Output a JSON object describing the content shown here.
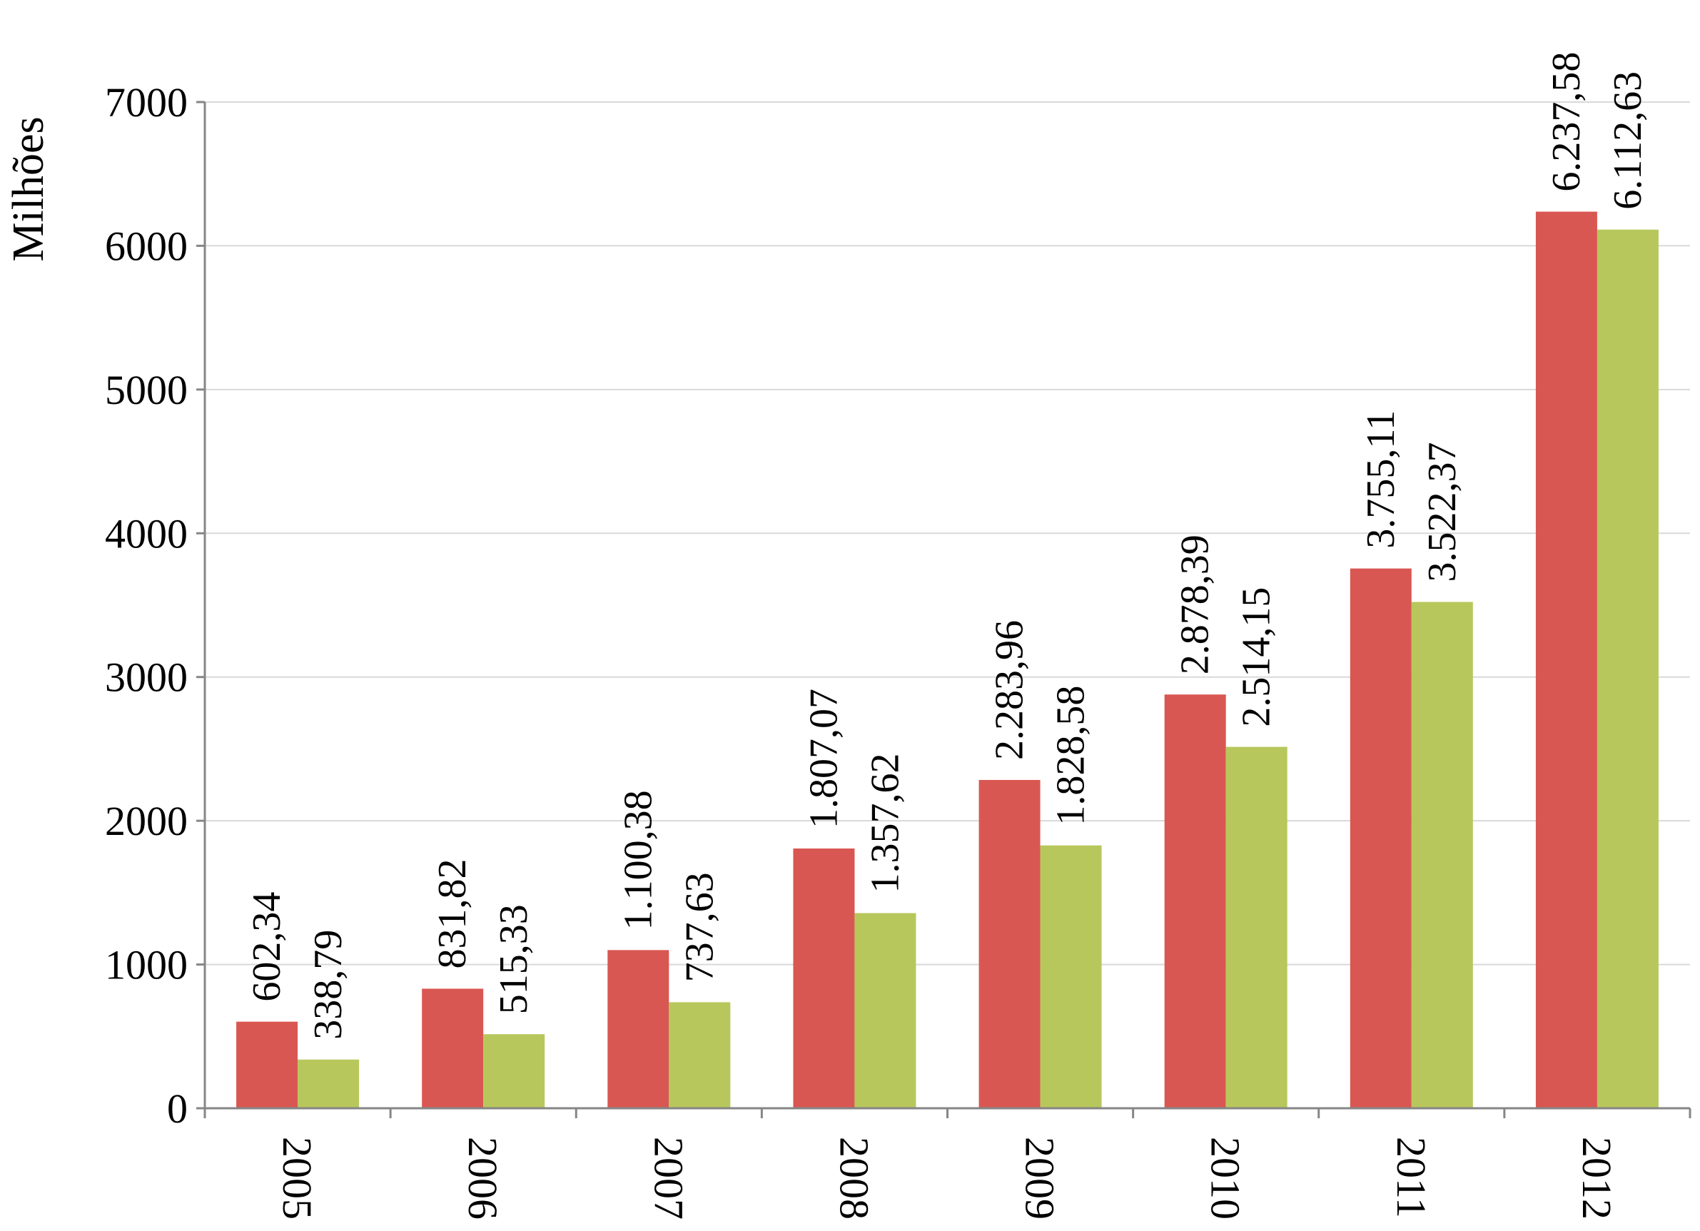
{
  "chart_data": {
    "type": "bar",
    "title": "",
    "xlabel": "",
    "ylabel": "Milhões",
    "ylim": [
      0,
      7000
    ],
    "yticks": [
      0,
      1000,
      2000,
      3000,
      4000,
      5000,
      6000,
      7000
    ],
    "grid": true,
    "legend": "none",
    "categories": [
      "2005",
      "2006",
      "2007",
      "2008",
      "2009",
      "2010",
      "2011",
      "2012"
    ],
    "series": [
      {
        "color": "#d95752",
        "values": [
          602.34,
          831.82,
          1100.38,
          1807.07,
          2283.96,
          2878.39,
          3755.11,
          6237.58
        ],
        "labels": [
          "602,34",
          "831,82",
          "1.100,38",
          "1.807,07",
          "2.283,96",
          "2.878,39",
          "3.755,11",
          "6.237,58"
        ]
      },
      {
        "color": "#b8c75c",
        "values": [
          338.79,
          515.33,
          737.63,
          1357.62,
          1828.58,
          2514.15,
          3522.37,
          6112.63
        ],
        "labels": [
          "338,79",
          "515,33",
          "737,63",
          "1.357,62",
          "1.828,58",
          "2.514,15",
          "3.522,37",
          "6.112,63"
        ]
      }
    ]
  }
}
